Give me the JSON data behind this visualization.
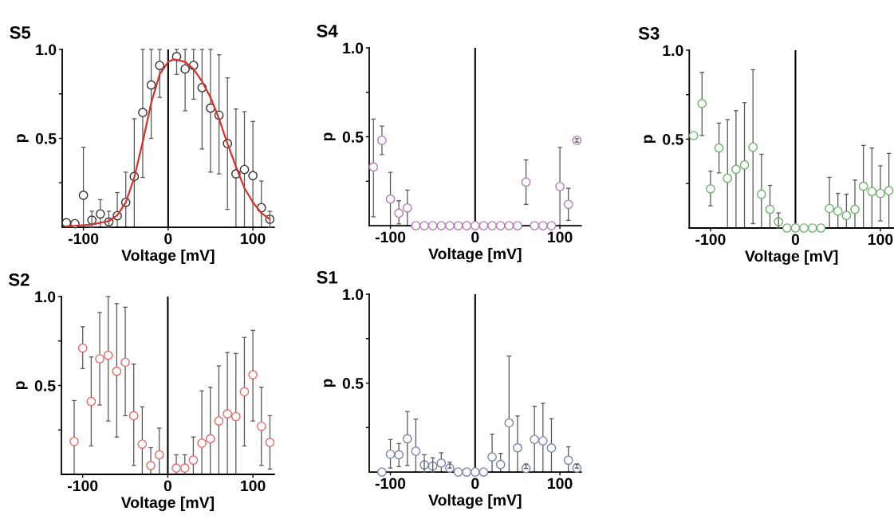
{
  "chart_data": [
    {
      "type": "scatter",
      "title": "S5",
      "xlabel": "Voltage [mV]",
      "ylabel": "p",
      "xlim": [
        -125,
        125
      ],
      "ylim": [
        0,
        1
      ],
      "xticks": [
        -100,
        0,
        100
      ],
      "yticks": [
        {
          "value": 0.25,
          "label": null
        },
        {
          "value": 0.5,
          "label": "0.5"
        },
        {
          "value": 0.75,
          "label": null
        },
        {
          "value": 1,
          "label": "1.0"
        }
      ],
      "marker": "circle",
      "grid": false,
      "legend": false,
      "ref_lines": [
        {
          "axis": "x",
          "value": 0,
          "color": "#000000"
        }
      ],
      "series": [
        {
          "type": "scatter",
          "color": "#303030",
          "x": [
            -120,
            -110,
            -100,
            -90,
            -80,
            -70,
            -60,
            -50,
            -40,
            -30,
            -20,
            -10,
            10,
            20,
            30,
            40,
            50,
            60,
            70,
            80,
            90,
            100,
            110,
            120
          ],
          "values": [
            0.025,
            0.02,
            0.18,
            0.04,
            0.075,
            0.03,
            0.065,
            0.14,
            0.285,
            0.645,
            0.8,
            0.91,
            0.96,
            0.89,
            0.91,
            0.785,
            0.67,
            0.63,
            0.47,
            0.3,
            0.325,
            0.29,
            0.11,
            0.045
          ],
          "errors": [
            null,
            null,
            [
              0,
              0.45
            ],
            [
              0,
              0.09
            ],
            [
              0,
              0.155
            ],
            [
              0,
              0.09
            ],
            [
              0,
              0.195
            ],
            [
              0,
              0.31
            ],
            [
              0,
              0.61
            ],
            [
              0.28,
              1.0
            ],
            [
              0.5,
              1.0
            ],
            [
              0.73,
              1.0
            ],
            [
              0.86,
              1.0
            ],
            [
              0.655,
              1.0
            ],
            [
              0.72,
              1.0
            ],
            [
              0.44,
              1.0
            ],
            [
              0.31,
              1.0
            ],
            [
              0.3,
              0.97
            ],
            [
              0.1,
              0.84
            ],
            [
              0,
              0.665
            ],
            [
              0,
              0.65
            ],
            [
              0,
              0.595
            ],
            [
              0,
              0.26
            ],
            [
              0,
              0.09
            ]
          ]
        },
        {
          "type": "line",
          "marker": "none",
          "color": "#d9302c",
          "x": [
            -120,
            -110,
            -90,
            -70,
            -60,
            -50,
            -40,
            -30,
            -20,
            -10,
            0,
            7,
            20,
            30,
            40,
            50,
            60,
            70,
            80,
            90,
            100,
            110,
            120
          ],
          "values": [
            0.005,
            0.008,
            0.015,
            0.035,
            0.068,
            0.14,
            0.28,
            0.48,
            0.7,
            0.86,
            0.93,
            0.945,
            0.93,
            0.89,
            0.82,
            0.73,
            0.61,
            0.47,
            0.34,
            0.22,
            0.14,
            0.08,
            0.045
          ]
        }
      ]
    },
    {
      "type": "scatter",
      "title": "S4",
      "xlabel": "Voltage [mV]",
      "ylabel": "p",
      "xlim": [
        -125,
        125
      ],
      "ylim": [
        0,
        1
      ],
      "xticks": [
        -100,
        0,
        100
      ],
      "yticks": [
        {
          "value": 0.25,
          "label": null
        },
        {
          "value": 0.5,
          "label": "0.5"
        },
        {
          "value": 0.75,
          "label": null
        },
        {
          "value": 1,
          "label": "1.0"
        }
      ],
      "marker": "circle",
      "grid": false,
      "legend": false,
      "ref_lines": [
        {
          "axis": "x",
          "value": 0,
          "color": "#000000"
        }
      ],
      "series": [
        {
          "type": "scatter",
          "color": "#b07cb0",
          "x": [
            -120,
            -110,
            -100,
            -90,
            -80,
            -70,
            -60,
            -50,
            -40,
            -30,
            -20,
            -10,
            0,
            10,
            20,
            30,
            40,
            50,
            60,
            70,
            80,
            90,
            100,
            110,
            120
          ],
          "values": [
            0.33,
            0.48,
            0.15,
            0.07,
            0.1,
            0,
            0,
            0,
            0,
            0,
            0,
            0,
            0,
            0,
            0,
            0,
            0,
            0,
            0.245,
            0,
            0,
            0,
            0.22,
            0.12,
            0.48
          ],
          "errors": [
            [
              0.05,
              0.6
            ],
            [
              0.4,
              0.56
            ],
            [
              0,
              0.3
            ],
            [
              0.01,
              0.14
            ],
            [
              0,
              0.2
            ],
            null,
            null,
            null,
            null,
            null,
            null,
            null,
            null,
            null,
            null,
            null,
            null,
            null,
            [
              0.12,
              0.37
            ],
            null,
            null,
            null,
            [
              0,
              0.44
            ],
            [
              0.03,
              0.21
            ],
            [
              0.47,
              0.49
            ]
          ]
        }
      ]
    },
    {
      "type": "scatter",
      "title": "S3",
      "xlabel": "Voltage [mV]",
      "ylabel": "p",
      "xlim": [
        -125,
        116
      ],
      "ylim": [
        0,
        1
      ],
      "xticks": [
        -100,
        0,
        100
      ],
      "yticks": [
        {
          "value": 0.25,
          "label": null
        },
        {
          "value": 0.5,
          "label": "0.5"
        },
        {
          "value": 0.75,
          "label": null
        },
        {
          "value": 1,
          "label": "1.0"
        }
      ],
      "marker": "circle",
      "grid": false,
      "legend": false,
      "ref_lines": [
        {
          "axis": "x",
          "value": 0,
          "color": "#000000"
        }
      ],
      "series": [
        {
          "type": "scatter",
          "color": "#6cb06c",
          "x": [
            -120,
            -110,
            -100,
            -90,
            -80,
            -70,
            -60,
            -50,
            -40,
            -30,
            -20,
            -10,
            0,
            10,
            20,
            30,
            40,
            50,
            60,
            70,
            80,
            90,
            100,
            110
          ],
          "values": [
            0.52,
            0.7,
            0.22,
            0.45,
            0.28,
            0.33,
            0.355,
            0.455,
            0.19,
            0.105,
            0.035,
            0,
            0,
            0,
            0,
            0,
            0.11,
            0.095,
            0.07,
            0.105,
            0.235,
            0.205,
            0.195,
            0.21
          ],
          "errors": [
            null,
            [
              0.52,
              0.875
            ],
            [
              0.125,
              0.32
            ],
            [
              0.31,
              0.59
            ],
            [
              0,
              0.61
            ],
            [
              0,
              0.66
            ],
            [
              0,
              0.705
            ],
            [
              0.025,
              0.89
            ],
            [
              0,
              0.415
            ],
            [
              0,
              0.24
            ],
            [
              0,
              0.085
            ],
            null,
            null,
            null,
            null,
            null,
            [
              0,
              0.285
            ],
            [
              0,
              0.195
            ],
            [
              0,
              0.19
            ],
            [
              0,
              0.27
            ],
            [
              0,
              0.465
            ],
            [
              0,
              0.45
            ],
            [
              0.04,
              0.35
            ],
            [
              0,
              0.42
            ]
          ]
        }
      ]
    },
    {
      "type": "scatter",
      "title": "S2",
      "xlabel": "Voltage [mV]",
      "ylabel": "p",
      "xlim": [
        -125,
        125
      ],
      "ylim": [
        0,
        1
      ],
      "xticks": [
        -100,
        0,
        100
      ],
      "yticks": [
        {
          "value": 0.25,
          "label": null
        },
        {
          "value": 0.5,
          "label": "0.5"
        },
        {
          "value": 0.75,
          "label": null
        },
        {
          "value": 1,
          "label": "1.0"
        }
      ],
      "marker": "circle",
      "grid": false,
      "legend": false,
      "ref_lines": [
        {
          "axis": "x",
          "value": 0,
          "color": "#000000"
        }
      ],
      "series": [
        {
          "type": "scatter",
          "color": "#e06a6a",
          "x": [
            -110,
            -100,
            -90,
            -80,
            -70,
            -60,
            -50,
            -40,
            -30,
            -20,
            -10,
            10,
            20,
            30,
            40,
            50,
            60,
            70,
            80,
            90,
            100,
            110,
            120
          ],
          "values": [
            0.185,
            0.71,
            0.41,
            0.65,
            0.67,
            0.58,
            0.63,
            0.33,
            0.17,
            0.05,
            0.11,
            0.035,
            0.035,
            0.08,
            0.175,
            0.2,
            0.3,
            0.34,
            0.325,
            0.465,
            0.56,
            0.27,
            0.18
          ],
          "errors": [
            [
              0,
              0.415
            ],
            [
              0.595,
              0.83
            ],
            [
              0.16,
              0.66
            ],
            [
              0.39,
              0.91
            ],
            [
              0.3,
              1.0
            ],
            [
              0.21,
              0.96
            ],
            [
              0.33,
              0.94
            ],
            [
              0.05,
              0.62
            ],
            [
              0,
              0.38
            ],
            [
              0,
              0.15
            ],
            [
              0,
              0.26
            ],
            [
              0,
              0.11
            ],
            [
              0,
              0.11
            ],
            [
              0,
              0.21
            ],
            [
              0,
              0.47
            ],
            [
              0,
              0.49
            ],
            [
              0,
              0.61
            ],
            [
              0,
              0.685
            ],
            [
              0,
              0.68
            ],
            [
              0.16,
              0.77
            ],
            [
              0.3,
              0.81
            ],
            [
              0.05,
              0.49
            ],
            [
              0.03,
              0.33
            ]
          ]
        }
      ]
    },
    {
      "type": "scatter",
      "title": "S1",
      "xlabel": "Voltage [mV]",
      "ylabel": "p",
      "xlim": [
        -125,
        125
      ],
      "ylim": [
        0,
        1
      ],
      "xticks": [
        -100,
        0,
        100
      ],
      "yticks": [
        {
          "value": 0.25,
          "label": null
        },
        {
          "value": 0.5,
          "label": "0.5"
        },
        {
          "value": 0.75,
          "label": null
        },
        {
          "value": 1,
          "label": "1.0"
        }
      ],
      "marker": "circle",
      "grid": false,
      "legend": false,
      "ref_lines": [
        {
          "axis": "x",
          "value": 0,
          "color": "#000000"
        }
      ],
      "series": [
        {
          "type": "scatter",
          "color": "#7684aa",
          "x": [
            -110,
            -100,
            -90,
            -80,
            -70,
            -60,
            -50,
            -40,
            -30,
            -20,
            -10,
            0,
            10,
            20,
            30,
            40,
            50,
            60,
            70,
            80,
            90,
            110,
            120
          ],
          "values": [
            0,
            0.1,
            0.097,
            0.187,
            0.117,
            0.04,
            0.033,
            0.05,
            0.022,
            0,
            0,
            0,
            0,
            0.085,
            0.042,
            0.276,
            0.136,
            0.02,
            0.183,
            0.175,
            0.135,
            0.066,
            0.022
          ],
          "errors": [
            null,
            [
              0.022,
              0.183
            ],
            [
              0.03,
              0.16
            ],
            [
              0.037,
              0.34
            ],
            [
              0,
              0.297
            ],
            [
              0,
              0.097
            ],
            [
              0,
              0.08
            ],
            [
              0,
              0.108
            ],
            [
              0.022,
              0.055
            ],
            null,
            null,
            null,
            null,
            [
              0,
              0.213
            ],
            [
              0,
              0.105
            ],
            [
              0,
              0.652
            ],
            [
              0,
              0.315
            ],
            [
              0.02,
              0.045
            ],
            [
              0,
              0.37
            ],
            [
              0,
              0.387
            ],
            [
              0,
              0.3
            ],
            [
              0,
              0.142
            ],
            [
              0.022,
              0.045
            ]
          ]
        }
      ]
    }
  ]
}
